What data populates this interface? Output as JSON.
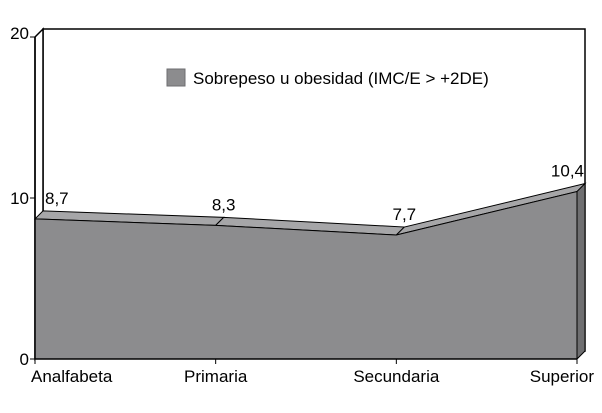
{
  "chart_data": {
    "type": "area",
    "title": "",
    "xlabel": "",
    "ylabel": "",
    "categories": [
      "Analfabeta",
      "Primaria",
      "Secundaria",
      "Superior"
    ],
    "series": [
      {
        "name": "Sobrepeso u obesidad (IMC/E > +2DE)",
        "values": [
          8.7,
          8.3,
          7.7,
          10.4
        ],
        "labels": [
          "8,7",
          "8,3",
          "7,7",
          "10,4"
        ],
        "color": "#8c8c8e"
      }
    ],
    "ylim": [
      0,
      20
    ],
    "yticks": [
      0,
      10,
      20
    ],
    "ytick_labels": [
      "0",
      "10",
      "20"
    ],
    "grid": false,
    "legend_position": "top-right",
    "style": "3d"
  }
}
